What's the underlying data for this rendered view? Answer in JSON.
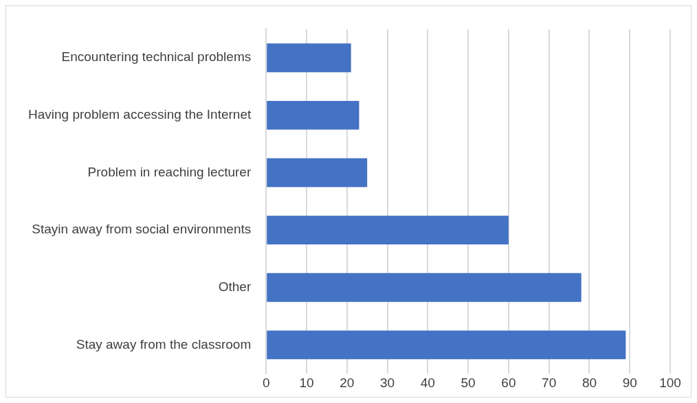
{
  "chart_data": {
    "type": "bar",
    "orientation": "horizontal",
    "categories": [
      "Encountering technical problems",
      "Having problem accessing the Internet",
      "Problem in reaching lecturer",
      "Stayin away from social environments",
      "Other",
      "Stay away from the classroom"
    ],
    "values": [
      21,
      23,
      25,
      60,
      78,
      89
    ],
    "color": "#4472c4",
    "xlim": [
      0,
      100
    ],
    "xticks": [
      0,
      10,
      20,
      30,
      40,
      50,
      60,
      70,
      80,
      90,
      100
    ],
    "grid": "x",
    "legend": false
  }
}
